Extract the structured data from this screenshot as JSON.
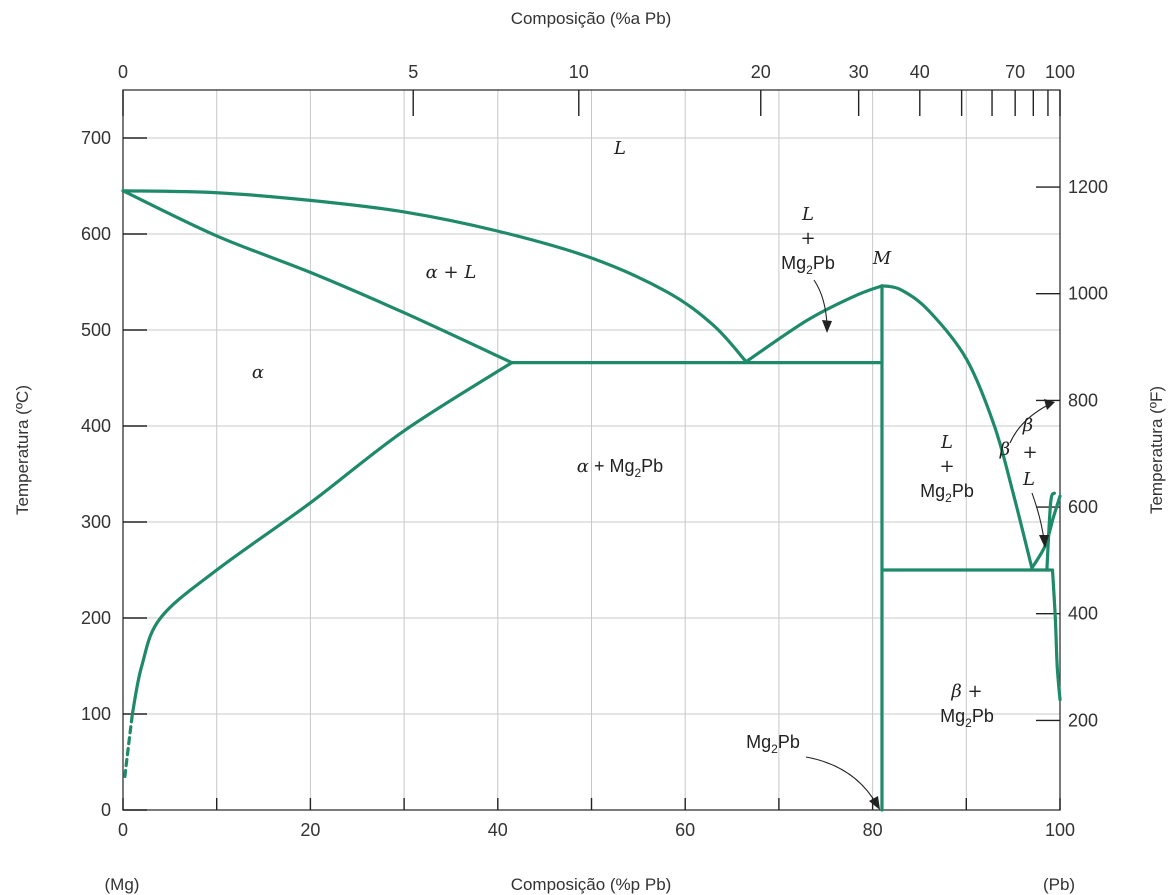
{
  "chart_data": {
    "type": "line",
    "title": "",
    "xlabel": "Composição (%p Pb)",
    "x2label": "Composição (%a Pb)",
    "ylabel": "Temperatura (ºC)",
    "y2label": "Temperatura (ºF)",
    "xlim": [
      0,
      100
    ],
    "ylim": [
      0,
      750
    ],
    "x_ticks": [
      "0",
      "20",
      "40",
      "60",
      "80",
      "100"
    ],
    "y_ticks": [
      "0",
      "100",
      "200",
      "300",
      "400",
      "500",
      "600",
      "700"
    ],
    "x2_ticks": [
      {
        "label": "0",
        "at_pct_pb": 0
      },
      {
        "label": "5",
        "at_pct_pb": 5
      },
      {
        "label": "10",
        "at_pct_pb": 10
      },
      {
        "label": "20",
        "at_pct_pb": 20
      },
      {
        "label": "30",
        "at_pct_pb": 30
      },
      {
        "label": "40",
        "at_pct_pb": 40
      },
      {
        "label": "70",
        "at_pct_pb": 70
      },
      {
        "label": "100",
        "at_pct_pb": 100
      }
    ],
    "x2_minor_ticks_at_pct_pb": [
      50,
      60,
      80,
      90
    ],
    "y2_ticks": [
      {
        "label": "200",
        "degF": 200
      },
      {
        "label": "400",
        "degF": 400
      },
      {
        "label": "600",
        "degF": 600
      },
      {
        "label": "800",
        "degF": 800
      },
      {
        "label": "1000",
        "degF": 1000
      },
      {
        "label": "1200",
        "degF": 1200
      }
    ],
    "end_labels": {
      "left": "(Mg)",
      "right": "(Pb)"
    },
    "grid": true,
    "series": [
      {
        "values": [
          [
            0,
            645
          ],
          [
            10,
            643
          ],
          [
            20,
            635
          ],
          [
            30,
            623
          ],
          [
            40,
            603
          ],
          [
            50,
            575
          ],
          [
            58,
            540
          ],
          [
            63,
            505
          ],
          [
            66.5,
            467
          ]
        ]
      },
      {
        "values": [
          [
            0,
            645
          ],
          [
            10,
            598
          ],
          [
            20,
            560
          ],
          [
            30,
            518
          ],
          [
            41.5,
            466
          ]
        ]
      },
      {
        "values": [
          [
            1,
            100
          ],
          [
            2,
            150
          ],
          [
            4,
            200
          ],
          [
            10,
            250
          ],
          [
            20,
            320
          ],
          [
            30,
            395
          ],
          [
            41.5,
            466
          ]
        ]
      },
      {
        "values": [
          [
            0.2,
            35
          ],
          [
            0.5,
            60
          ],
          [
            1,
            100
          ]
        ],
        "dashed": true
      },
      {
        "values": [
          [
            41.5,
            466
          ],
          [
            81,
            466
          ]
        ]
      },
      {
        "values": [
          [
            66.5,
            467
          ],
          [
            73,
            510
          ],
          [
            78,
            535
          ],
          [
            81,
            546
          ]
        ]
      },
      {
        "values": [
          [
            81,
            0
          ],
          [
            81,
            546
          ]
        ]
      },
      {
        "values": [
          [
            81,
            546
          ],
          [
            83,
            542
          ],
          [
            86,
            520
          ],
          [
            90,
            470
          ],
          [
            93,
            400
          ],
          [
            95,
            330
          ],
          [
            97,
            252
          ]
        ]
      },
      {
        "values": [
          [
            81,
            250
          ],
          [
            99,
            250
          ]
        ]
      },
      {
        "values": [
          [
            97,
            252
          ],
          [
            98.4,
            275
          ],
          [
            99.3,
            305
          ],
          [
            100,
            327
          ]
        ]
      },
      {
        "values": [
          [
            98.6,
            250
          ],
          [
            99,
            320
          ],
          [
            99.4,
            330
          ]
        ]
      },
      {
        "values": [
          [
            99.2,
            250
          ],
          [
            99.5,
            200
          ],
          [
            99.7,
            150
          ],
          [
            100,
            115
          ]
        ]
      }
    ],
    "annotations": {
      "liquid": "L",
      "alpha_plus_liquid": "α + L",
      "alpha": "α",
      "alpha_plus_mg2pb": "α + Mg2Pb",
      "max_point": "M",
      "left_l_mg2pb": [
        "L",
        "+",
        "Mg2Pb"
      ],
      "right_l_mg2pb": [
        "L",
        "+",
        "Mg2Pb"
      ],
      "beta_plus_l": [
        "β",
        "+",
        "L"
      ],
      "beta": "β",
      "beta_plus_mg2pb": [
        "β +",
        "Mg2Pb"
      ],
      "compound": "Mg2Pb"
    }
  }
}
